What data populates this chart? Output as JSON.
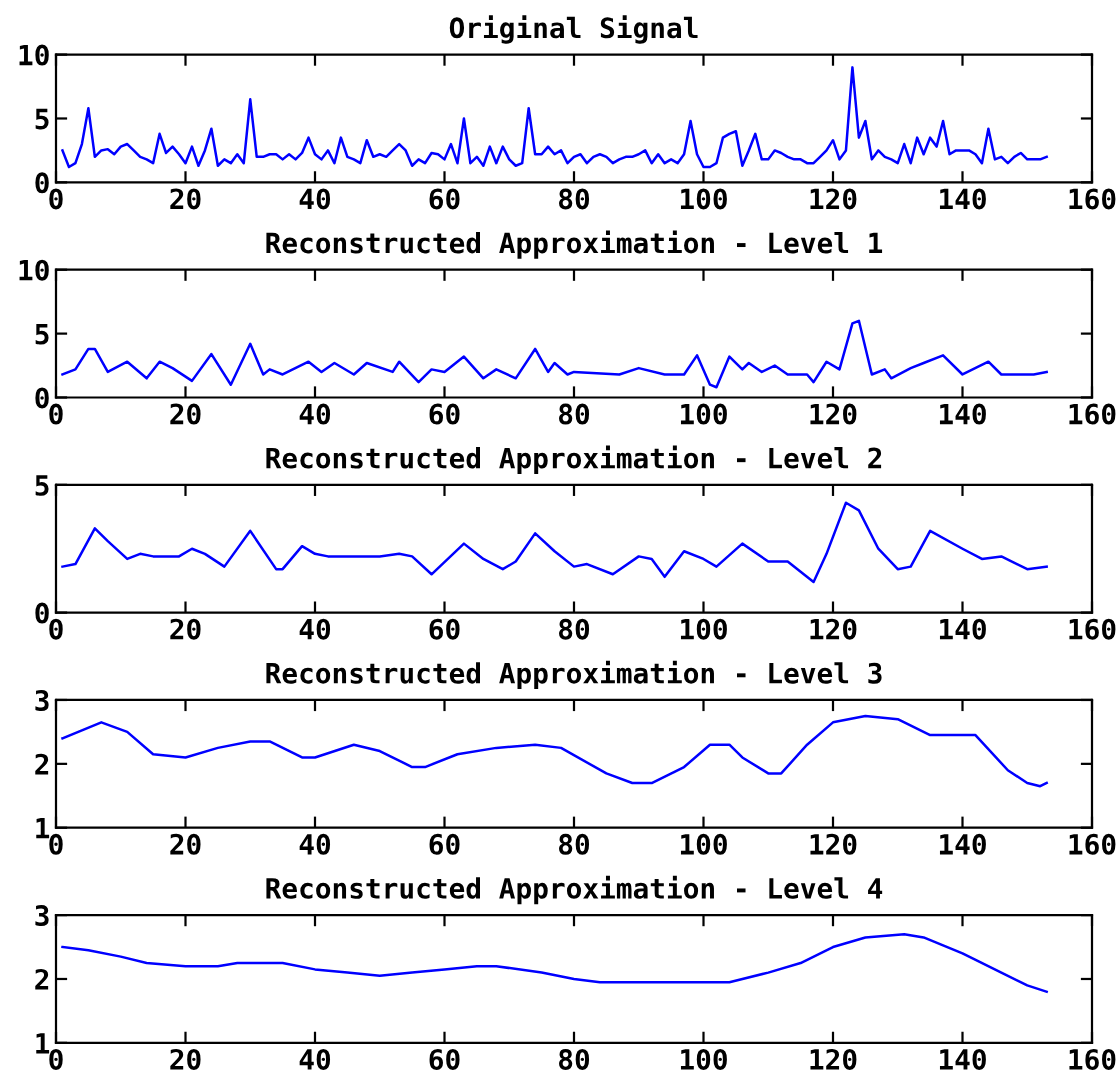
{
  "chart_data": [
    {
      "type": "line",
      "title": "Original Signal",
      "color": "#0000ff",
      "xlim": [
        0,
        160
      ],
      "xticks": [
        0,
        20,
        40,
        60,
        80,
        100,
        120,
        140,
        160
      ],
      "ylim": [
        0,
        10
      ],
      "yticks": [
        0,
        5,
        10
      ],
      "x": [
        1,
        2,
        3,
        4,
        5,
        6,
        7,
        8,
        9,
        10,
        11,
        12,
        13,
        14,
        15,
        16,
        17,
        18,
        19,
        20,
        21,
        22,
        23,
        24,
        25,
        26,
        27,
        28,
        29,
        30,
        31,
        32,
        33,
        34,
        35,
        36,
        37,
        38,
        39,
        40,
        41,
        42,
        43,
        44,
        45,
        46,
        47,
        48,
        49,
        50,
        51,
        52,
        53,
        54,
        55,
        56,
        57,
        58,
        59,
        60,
        61,
        62,
        63,
        64,
        65,
        66,
        67,
        68,
        69,
        70,
        71,
        72,
        73,
        74,
        75,
        76,
        77,
        78,
        79,
        80,
        81,
        82,
        83,
        84,
        85,
        86,
        87,
        88,
        89,
        90,
        91,
        92,
        93,
        94,
        95,
        96,
        97,
        98,
        99,
        100,
        101,
        102,
        103,
        104,
        105,
        106,
        107,
        108,
        109,
        110,
        111,
        112,
        113,
        114,
        115,
        116,
        117,
        118,
        119,
        120,
        121,
        122,
        123,
        124,
        125,
        126,
        127,
        128,
        129,
        130,
        131,
        132,
        133,
        134,
        135,
        136,
        137,
        138,
        139,
        140,
        141,
        142,
        143,
        144,
        145,
        146,
        147,
        148,
        149,
        150,
        151,
        152,
        153
      ],
      "values": [
        2.5,
        1.2,
        1.5,
        3,
        5.8,
        2,
        2.5,
        2.6,
        2.2,
        2.8,
        3,
        2.5,
        2,
        1.8,
        1.5,
        3.8,
        2.3,
        2.8,
        2.2,
        1.5,
        2.8,
        1.3,
        2.5,
        4.2,
        1.3,
        1.8,
        1.5,
        2.2,
        1.5,
        6.5,
        2,
        2,
        2.2,
        2.2,
        1.8,
        2.2,
        1.8,
        2.3,
        3.5,
        2.2,
        1.8,
        2.5,
        1.5,
        3.5,
        2,
        1.8,
        1.5,
        3.3,
        2,
        2.2,
        2,
        2.5,
        3,
        2.5,
        1.3,
        1.8,
        1.5,
        2.3,
        2.2,
        1.8,
        3,
        1.5,
        5,
        1.5,
        2,
        1.3,
        2.8,
        1.5,
        2.8,
        1.8,
        1.3,
        1.5,
        5.8,
        2.2,
        2.2,
        2.8,
        2.2,
        2.5,
        1.5,
        2,
        2.2,
        1.5,
        2,
        2.2,
        2,
        1.5,
        1.8,
        2,
        2,
        2.2,
        2.5,
        1.5,
        2.2,
        1.5,
        1.8,
        1.5,
        2.2,
        4.8,
        2.2,
        1.2,
        1.2,
        1.5,
        3.5,
        3.8,
        4,
        1.3,
        2.5,
        3.8,
        1.8,
        1.8,
        2.5,
        2.3,
        2,
        1.8,
        1.8,
        1.5,
        1.5,
        2,
        2.5,
        3.3,
        1.8,
        2.5,
        9,
        3.5,
        4.8,
        1.8,
        2.5,
        2,
        1.8,
        1.5,
        3,
        1.5,
        3.5,
        2.2,
        3.5,
        2.8,
        4.8,
        2.2,
        2.5,
        2.5,
        2.5,
        2.2,
        1.5,
        4.2,
        1.8,
        2,
        1.5,
        2,
        2.3,
        1.8,
        1.8,
        1.8,
        2
      ]
    },
    {
      "type": "line",
      "title": "Reconstructed Approximation - Level 1",
      "color": "#0000ff",
      "xlim": [
        0,
        160
      ],
      "xticks": [
        0,
        20,
        40,
        60,
        80,
        100,
        120,
        140,
        160
      ],
      "ylim": [
        0,
        10
      ],
      "yticks": [
        0,
        5,
        10
      ],
      "x": [
        1,
        3,
        5,
        6,
        8,
        11,
        14,
        16,
        18,
        21,
        24,
        27,
        30,
        32,
        33,
        35,
        39,
        41,
        43,
        46,
        48,
        52,
        53,
        56,
        58,
        60,
        63,
        66,
        68,
        71,
        74,
        76,
        77,
        79,
        80,
        87,
        90,
        94,
        97,
        99,
        101,
        102,
        104,
        106,
        107,
        109,
        111,
        113,
        116,
        117,
        119,
        121,
        123,
        124,
        126,
        128,
        129,
        132,
        134,
        137,
        140,
        144,
        146,
        151,
        153
      ],
      "values": [
        1.8,
        2.2,
        3.8,
        3.8,
        2.0,
        2.8,
        1.5,
        2.8,
        2.3,
        1.3,
        3.4,
        1.0,
        4.2,
        1.8,
        2.2,
        1.8,
        2.8,
        2.0,
        2.7,
        1.8,
        2.7,
        2.0,
        2.8,
        1.2,
        2.2,
        2.0,
        3.2,
        1.5,
        2.2,
        1.5,
        3.8,
        2.0,
        2.7,
        1.8,
        2.0,
        1.8,
        2.3,
        1.8,
        1.8,
        3.3,
        1.0,
        0.8,
        3.2,
        2.2,
        2.7,
        2.0,
        2.5,
        1.8,
        1.8,
        1.2,
        2.8,
        2.2,
        5.8,
        6.0,
        1.8,
        2.2,
        1.5,
        2.3,
        2.7,
        3.3,
        1.8,
        2.8,
        1.8,
        1.8,
        2.0
      ]
    },
    {
      "type": "line",
      "title": "Reconstructed Approximation - Level 2",
      "color": "#0000ff",
      "xlim": [
        0,
        160
      ],
      "xticks": [
        0,
        20,
        40,
        60,
        80,
        100,
        120,
        140,
        160
      ],
      "ylim": [
        0,
        5
      ],
      "yticks": [
        0,
        5
      ],
      "x": [
        1,
        3,
        6,
        8,
        11,
        13,
        15,
        19,
        21,
        23,
        26,
        30,
        34,
        35,
        38,
        40,
        42,
        50,
        53,
        55,
        58,
        63,
        66,
        69,
        71,
        74,
        77,
        80,
        82,
        86,
        90,
        92,
        94,
        97,
        100,
        102,
        106,
        110,
        113,
        117,
        119,
        122,
        124,
        127,
        130,
        132,
        135,
        140,
        143,
        146,
        150,
        153
      ],
      "values": [
        1.8,
        1.9,
        3.3,
        2.8,
        2.1,
        2.3,
        2.2,
        2.2,
        2.5,
        2.3,
        1.8,
        3.2,
        1.7,
        1.7,
        2.6,
        2.3,
        2.2,
        2.2,
        2.3,
        2.2,
        1.5,
        2.7,
        2.1,
        1.7,
        2.0,
        3.1,
        2.4,
        1.8,
        1.9,
        1.5,
        2.2,
        2.1,
        1.4,
        2.4,
        2.1,
        1.8,
        2.7,
        2.0,
        2.0,
        1.2,
        2.3,
        4.3,
        4.0,
        2.5,
        1.7,
        1.8,
        3.2,
        2.5,
        2.1,
        2.2,
        1.7,
        1.8
      ]
    },
    {
      "type": "line",
      "title": "Reconstructed Approximation - Level 3",
      "color": "#0000ff",
      "xlim": [
        0,
        160
      ],
      "xticks": [
        0,
        20,
        40,
        60,
        80,
        100,
        120,
        140,
        160
      ],
      "ylim": [
        1,
        3
      ],
      "yticks": [
        1,
        2,
        3
      ],
      "x": [
        1,
        7,
        11,
        15,
        20,
        25,
        30,
        33,
        38,
        40,
        46,
        50,
        55,
        57,
        62,
        68,
        74,
        78,
        85,
        89,
        92,
        97,
        101,
        104,
        106,
        110,
        112,
        116,
        120,
        125,
        130,
        135,
        140,
        142,
        147,
        150,
        152,
        153
      ],
      "values": [
        2.4,
        2.65,
        2.5,
        2.15,
        2.1,
        2.25,
        2.35,
        2.35,
        2.1,
        2.1,
        2.3,
        2.2,
        1.95,
        1.95,
        2.15,
        2.25,
        2.3,
        2.25,
        1.85,
        1.7,
        1.7,
        1.95,
        2.3,
        2.3,
        2.1,
        1.85,
        1.85,
        2.3,
        2.65,
        2.75,
        2.7,
        2.45,
        2.45,
        2.45,
        1.9,
        1.7,
        1.65,
        1.7
      ]
    },
    {
      "type": "line",
      "title": "Reconstructed Approximation - Level 4",
      "color": "#0000ff",
      "xlim": [
        0,
        160
      ],
      "xticks": [
        0,
        20,
        40,
        60,
        80,
        100,
        120,
        140,
        160
      ],
      "ylim": [
        1,
        3
      ],
      "yticks": [
        1,
        2,
        3
      ],
      "x": [
        1,
        5,
        10,
        14,
        20,
        25,
        28,
        35,
        40,
        45,
        50,
        55,
        60,
        65,
        68,
        75,
        80,
        84,
        90,
        104,
        110,
        115,
        120,
        125,
        131,
        134,
        140,
        146,
        150,
        153
      ],
      "values": [
        2.5,
        2.45,
        2.35,
        2.25,
        2.2,
        2.2,
        2.25,
        2.25,
        2.15,
        2.1,
        2.05,
        2.1,
        2.15,
        2.2,
        2.2,
        2.1,
        2.0,
        1.95,
        1.95,
        1.95,
        2.1,
        2.25,
        2.5,
        2.65,
        2.7,
        2.65,
        2.4,
        2.1,
        1.9,
        1.8
      ]
    }
  ]
}
